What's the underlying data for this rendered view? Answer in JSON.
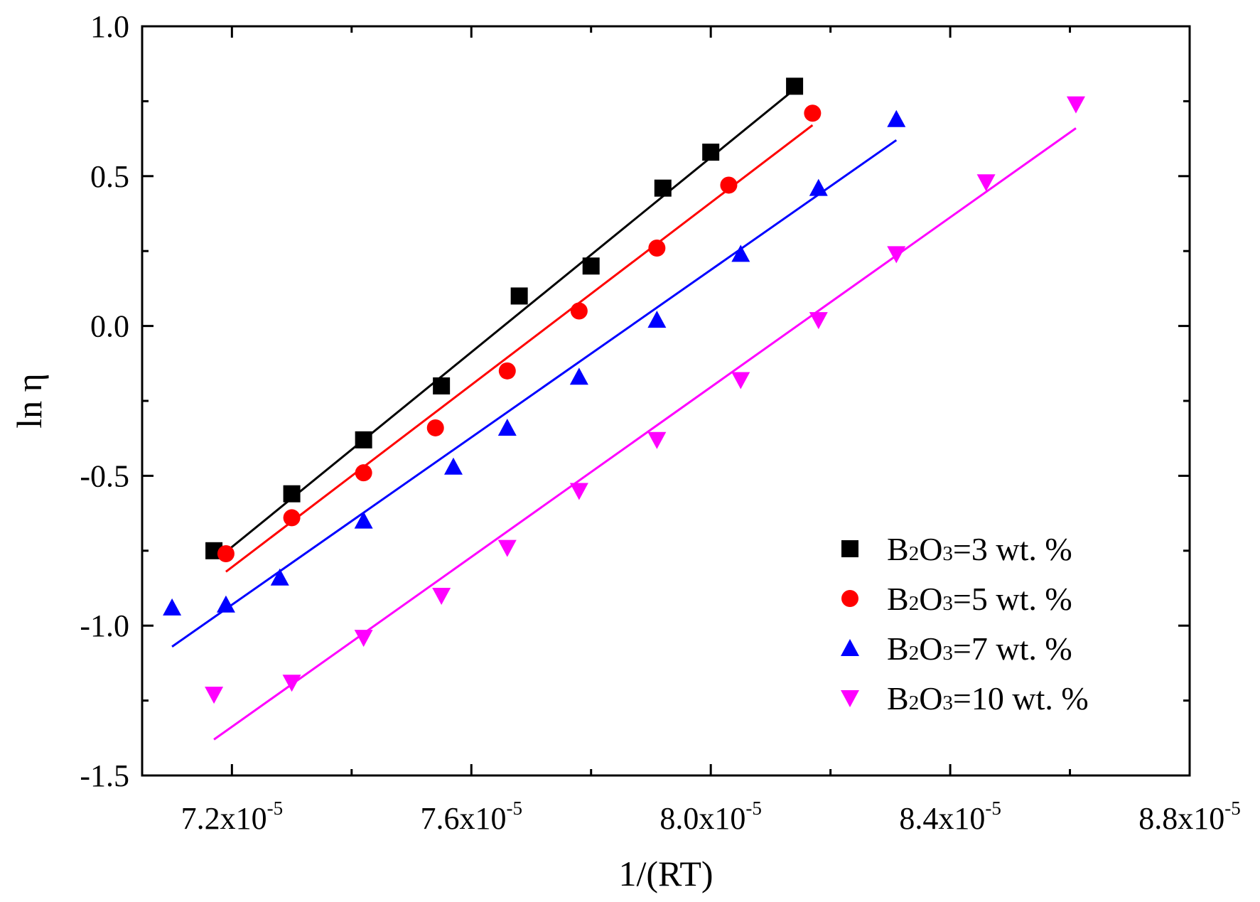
{
  "chart_data": {
    "type": "scatter",
    "title": "",
    "xlabel": "1/(RT)",
    "ylabel": "ln η",
    "xlim": [
      7.05e-05,
      8.8e-05
    ],
    "ylim": [
      -1.5,
      1.0
    ],
    "xticks": [
      7.2e-05,
      7.6e-05,
      8e-05,
      8.4e-05,
      8.8e-05
    ],
    "xtick_labels": [
      {
        "mantissa": "7.2x10",
        "exponent": "-5"
      },
      {
        "mantissa": "7.6x10",
        "exponent": "-5"
      },
      {
        "mantissa": "8.0x10",
        "exponent": "-5"
      },
      {
        "mantissa": "8.4x10",
        "exponent": "-5"
      },
      {
        "mantissa": "8.8x10",
        "exponent": "-5"
      }
    ],
    "yticks": [
      -1.5,
      -1.0,
      -0.5,
      0.0,
      0.5,
      1.0
    ],
    "ytick_labels": [
      "-1.5",
      "-1.0",
      "-0.5",
      "0.0",
      "0.5",
      "1.0"
    ],
    "grid": false,
    "legend_position": "bottom-right",
    "series": [
      {
        "name": "B2O3=3 wt. %",
        "label": {
          "pre": "B",
          "sub1": "2",
          "mid": "O",
          "sub2": "3",
          "post": "=3 wt. %"
        },
        "color": "#000000",
        "marker": "square",
        "x": [
          7.17e-05,
          7.3e-05,
          7.42e-05,
          7.55e-05,
          7.68e-05,
          7.8e-05,
          7.92e-05,
          8e-05,
          8.14e-05
        ],
        "y": [
          -0.75,
          -0.56,
          -0.38,
          -0.2,
          0.1,
          0.2,
          0.46,
          0.58,
          0.8
        ],
        "fit": {
          "x": [
            7.18e-05,
            8.14e-05
          ],
          "y": [
            -0.77,
            0.79
          ]
        }
      },
      {
        "name": "B2O3=5 wt. %",
        "label": {
          "pre": "B",
          "sub1": "2",
          "mid": "O",
          "sub2": "3",
          "post": "=5 wt. %"
        },
        "color": "#ff0000",
        "marker": "circle",
        "x": [
          7.19e-05,
          7.3e-05,
          7.42e-05,
          7.54e-05,
          7.66e-05,
          7.78e-05,
          7.91e-05,
          8.03e-05,
          8.17e-05
        ],
        "y": [
          -0.76,
          -0.64,
          -0.49,
          -0.34,
          -0.15,
          0.05,
          0.26,
          0.47,
          0.71
        ],
        "fit": {
          "x": [
            7.19e-05,
            8.17e-05
          ],
          "y": [
            -0.82,
            0.67
          ]
        }
      },
      {
        "name": "B2O3=7 wt. %",
        "label": {
          "pre": "B",
          "sub1": "2",
          "mid": "O",
          "sub2": "3",
          "post": "=7 wt. %"
        },
        "color": "#0000ff",
        "marker": "triangle-up",
        "x": [
          7.1e-05,
          7.19e-05,
          7.28e-05,
          7.42e-05,
          7.57e-05,
          7.66e-05,
          7.78e-05,
          7.91e-05,
          8.05e-05,
          8.18e-05,
          8.31e-05
        ],
        "y": [
          -0.94,
          -0.93,
          -0.84,
          -0.65,
          -0.47,
          -0.34,
          -0.17,
          0.02,
          0.24,
          0.46,
          0.69
        ],
        "fit": {
          "x": [
            7.1e-05,
            8.31e-05
          ],
          "y": [
            -1.07,
            0.62
          ]
        }
      },
      {
        "name": "B2O3=10 wt. %",
        "label": {
          "pre": "B",
          "sub1": "2",
          "mid": "O",
          "sub2": "3",
          "post": "=10 wt. %"
        },
        "color": "#ff00ff",
        "marker": "triangle-down",
        "x": [
          7.17e-05,
          7.3e-05,
          7.42e-05,
          7.55e-05,
          7.66e-05,
          7.78e-05,
          7.91e-05,
          8.05e-05,
          8.18e-05,
          8.31e-05,
          8.46e-05,
          8.61e-05
        ],
        "y": [
          -1.23,
          -1.19,
          -1.04,
          -0.9,
          -0.74,
          -0.55,
          -0.38,
          -0.18,
          0.02,
          0.24,
          0.48,
          0.74
        ],
        "fit": {
          "x": [
            7.17e-05,
            8.61e-05
          ],
          "y": [
            -1.38,
            0.66
          ]
        }
      }
    ]
  }
}
